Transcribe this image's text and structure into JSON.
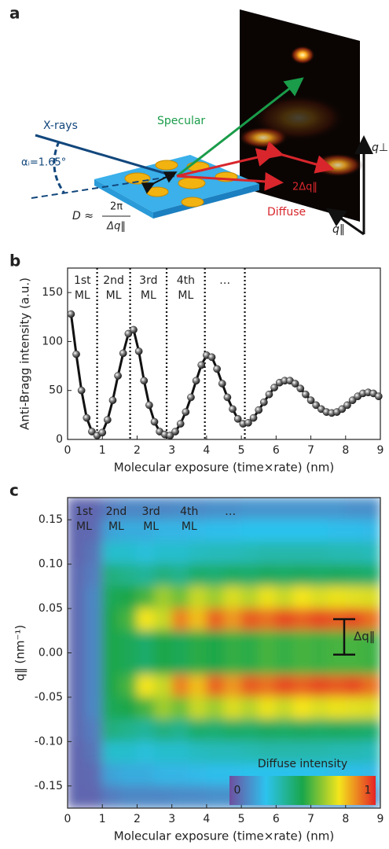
{
  "diagram": {
    "label": "a",
    "xrays": "X-rays",
    "specular": "Specular",
    "angle": "αᵢ=1.65°",
    "two_dq": "2Δq‖",
    "diffuse": "Diffuse",
    "formula_lhs": "D ≈",
    "formula_num": "2π",
    "formula_den": "Δq‖",
    "q_perp": "q⊥",
    "q_par": "q‖"
  },
  "chart_data": [
    {
      "type": "line",
      "panel_label": "b",
      "ylabel": "Anti-Bragg intensity (a.u.)",
      "xlabel": "Molecular exposure (time×rate) (nm)",
      "xlim": [
        0,
        9
      ],
      "ylim": [
        0,
        175
      ],
      "xticks": [
        0,
        1,
        2,
        3,
        4,
        5,
        6,
        7,
        8,
        9
      ],
      "yticks": [
        0,
        50,
        100,
        150
      ],
      "color": "#111111",
      "dividers": [
        0.85,
        1.8,
        2.85,
        3.95,
        5.1
      ],
      "layer_labels": [
        [
          "1st",
          "ML"
        ],
        [
          "2nd",
          "ML"
        ],
        [
          "3rd",
          "ML"
        ],
        [
          "4th",
          "ML"
        ],
        [
          "…"
        ]
      ],
      "x": [
        0.1,
        0.25,
        0.4,
        0.55,
        0.7,
        0.85,
        1.0,
        1.15,
        1.3,
        1.45,
        1.6,
        1.75,
        1.9,
        2.05,
        2.2,
        2.35,
        2.5,
        2.65,
        2.8,
        2.95,
        3.1,
        3.25,
        3.4,
        3.55,
        3.7,
        3.85,
        4.0,
        4.15,
        4.3,
        4.45,
        4.6,
        4.75,
        4.9,
        5.05,
        5.2,
        5.35,
        5.5,
        5.65,
        5.8,
        5.95,
        6.1,
        6.25,
        6.4,
        6.55,
        6.7,
        6.85,
        7.0,
        7.15,
        7.3,
        7.45,
        7.6,
        7.75,
        7.9,
        8.05,
        8.2,
        8.35,
        8.5,
        8.65,
        8.8,
        8.95
      ],
      "values": [
        128,
        87,
        50,
        22,
        8,
        4,
        7,
        20,
        40,
        65,
        88,
        108,
        112,
        90,
        60,
        35,
        18,
        8,
        5,
        4,
        8,
        16,
        28,
        43,
        60,
        76,
        86,
        84,
        72,
        57,
        43,
        31,
        21,
        16,
        17,
        22,
        30,
        38,
        46,
        53,
        58,
        60,
        60,
        57,
        52,
        46,
        40,
        35,
        31,
        28,
        27,
        28,
        31,
        35,
        40,
        44,
        47,
        48,
        47,
        44
      ]
    },
    {
      "type": "heatmap",
      "panel_label": "c",
      "ylabel": "q‖ (nm⁻¹)",
      "xlabel": "Molecular exposure (time×rate) (nm)",
      "xlim": [
        0,
        9
      ],
      "ylim": [
        -0.175,
        0.175
      ],
      "xticks": [
        0,
        1,
        2,
        3,
        4,
        5,
        6,
        7,
        8,
        9
      ],
      "yticks": [
        0.15,
        {
          "value": 0.1,
          "label": "0.10"
        },
        0.05,
        {
          "value": 0,
          "label": "0.00"
        },
        -0.05,
        {
          "value": -0.1,
          "label": "-0.10"
        },
        -0.15
      ],
      "layer_labels": [
        [
          "1st",
          "ML"
        ],
        [
          "2nd",
          "ML"
        ],
        [
          "3rd",
          "ML"
        ],
        [
          "4th",
          "ML"
        ],
        [
          "…"
        ]
      ],
      "annotation": "Δq‖",
      "colormap": [
        "#6e4f9f",
        "#2cc3ee",
        "#1aa64a",
        "#f4e51c",
        "#e42426"
      ],
      "clim": [
        0,
        1
      ],
      "colorbar": {
        "label": "Diffuse intensity",
        "ticks": [
          0,
          1
        ]
      },
      "x": [
        0.25,
        0.75,
        1.25,
        1.75,
        2.25,
        2.75,
        3.25,
        3.75,
        4.25,
        4.75,
        5.25,
        5.75,
        6.25,
        6.75,
        7.25,
        7.75,
        8.25,
        8.75
      ],
      "y": [
        0.1625,
        0.1375,
        0.1125,
        0.0875,
        0.0625,
        0.0375,
        0.0125,
        -0.0125,
        -0.0375,
        -0.0625,
        -0.0875,
        -0.1125,
        -0.1375,
        -0.1625
      ],
      "z": [
        [
          0.05,
          0.05,
          0.1,
          0.12,
          0.12,
          0.12,
          0.13,
          0.13,
          0.14,
          0.14,
          0.15,
          0.15,
          0.15,
          0.15,
          0.15,
          0.15,
          0.14,
          0.14
        ],
        [
          0.05,
          0.06,
          0.18,
          0.2,
          0.2,
          0.22,
          0.22,
          0.23,
          0.24,
          0.24,
          0.25,
          0.25,
          0.25,
          0.25,
          0.25,
          0.24,
          0.24,
          0.23
        ],
        [
          0.05,
          0.08,
          0.3,
          0.3,
          0.28,
          0.3,
          0.3,
          0.32,
          0.33,
          0.33,
          0.34,
          0.35,
          0.35,
          0.35,
          0.35,
          0.34,
          0.34,
          0.33
        ],
        [
          0.06,
          0.1,
          0.42,
          0.4,
          0.38,
          0.42,
          0.4,
          0.45,
          0.44,
          0.46,
          0.45,
          0.47,
          0.46,
          0.47,
          0.46,
          0.47,
          0.46,
          0.45
        ],
        [
          0.06,
          0.12,
          0.48,
          0.5,
          0.55,
          0.65,
          0.6,
          0.7,
          0.65,
          0.72,
          0.68,
          0.74,
          0.7,
          0.75,
          0.72,
          0.74,
          0.73,
          0.72
        ],
        [
          0.06,
          0.12,
          0.5,
          0.55,
          0.75,
          0.7,
          0.88,
          0.8,
          0.92,
          0.85,
          0.93,
          0.9,
          0.95,
          0.92,
          0.95,
          0.93,
          0.95,
          0.9
        ],
        [
          0.06,
          0.12,
          0.5,
          0.48,
          0.45,
          0.5,
          0.48,
          0.52,
          0.5,
          0.53,
          0.52,
          0.55,
          0.53,
          0.55,
          0.54,
          0.55,
          0.55,
          0.54
        ],
        [
          0.06,
          0.12,
          0.5,
          0.48,
          0.45,
          0.5,
          0.48,
          0.52,
          0.5,
          0.53,
          0.52,
          0.55,
          0.53,
          0.55,
          0.54,
          0.55,
          0.55,
          0.54
        ],
        [
          0.06,
          0.12,
          0.5,
          0.55,
          0.75,
          0.7,
          0.88,
          0.8,
          0.92,
          0.85,
          0.93,
          0.9,
          0.95,
          0.92,
          0.95,
          0.93,
          0.95,
          0.9
        ],
        [
          0.06,
          0.12,
          0.48,
          0.5,
          0.55,
          0.65,
          0.6,
          0.7,
          0.65,
          0.72,
          0.68,
          0.74,
          0.7,
          0.75,
          0.72,
          0.74,
          0.73,
          0.72
        ],
        [
          0.06,
          0.1,
          0.42,
          0.4,
          0.38,
          0.42,
          0.4,
          0.45,
          0.44,
          0.46,
          0.45,
          0.47,
          0.46,
          0.47,
          0.46,
          0.47,
          0.46,
          0.45
        ],
        [
          0.05,
          0.08,
          0.3,
          0.3,
          0.28,
          0.3,
          0.3,
          0.32,
          0.33,
          0.33,
          0.34,
          0.35,
          0.35,
          0.35,
          0.35,
          0.34,
          0.34,
          0.33
        ],
        [
          0.05,
          0.06,
          0.18,
          0.2,
          0.2,
          0.22,
          0.22,
          0.23,
          0.24,
          0.24,
          0.25,
          0.25,
          0.25,
          0.25,
          0.25,
          0.24,
          0.24,
          0.23
        ],
        [
          0.05,
          0.05,
          0.1,
          0.12,
          0.12,
          0.12,
          0.13,
          0.13,
          0.14,
          0.14,
          0.15,
          0.15,
          0.15,
          0.15,
          0.15,
          0.15,
          0.14,
          0.14
        ]
      ]
    }
  ]
}
